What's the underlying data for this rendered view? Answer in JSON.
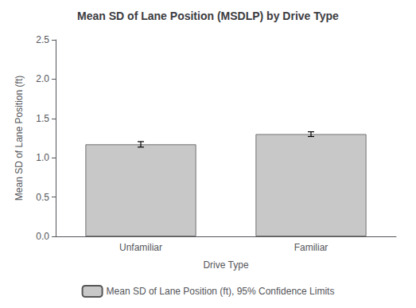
{
  "chart_data": {
    "type": "bar",
    "title": "Mean SD of Lane Position (MSDLP) by Drive Type",
    "xlabel": "Drive Type",
    "ylabel": "Mean SD of Lane Position (ft)",
    "categories": [
      "Unfamiliar",
      "Familiar"
    ],
    "series": [
      {
        "name": "Mean SD of Lane Position (ft), 95% Confidence Limits",
        "color": "#c8c8c8",
        "values": [
          1.17,
          1.3
        ],
        "errors": [
          0.035,
          0.03
        ]
      }
    ],
    "ylim": [
      0.0,
      2.5
    ],
    "yticks": [
      {
        "value": 0.0,
        "label": "0.0"
      },
      0.5,
      {
        "value": 1.0,
        "label": "1.0"
      },
      1.5,
      {
        "value": 2.0,
        "label": "2.0"
      },
      2.5
    ],
    "grid": false,
    "legend": "bottom"
  }
}
